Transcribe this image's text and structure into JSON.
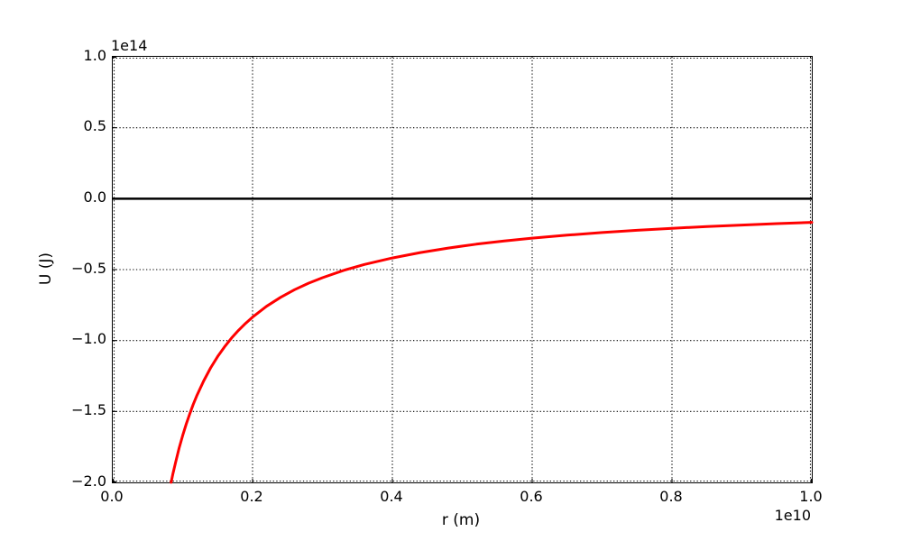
{
  "figure": {
    "background": "#ffffff",
    "axes_background": "#ffffff",
    "spine_color": "#000000",
    "text_color": "#000000"
  },
  "chart_data": {
    "type": "line",
    "title": "",
    "xlabel": "r (m)",
    "ylabel": "U (J)",
    "x_offset_text": "1e10",
    "y_offset_text": "1e14",
    "xlim": [
      0.0,
      1.0
    ],
    "ylim": [
      -2.0,
      1.0
    ],
    "xticks": {
      "values": [
        0.0,
        0.2,
        0.4,
        0.6,
        0.8,
        1.0
      ],
      "labels": [
        "0.0",
        "0.2",
        "0.4",
        "0.6",
        "0.8",
        "1.0"
      ]
    },
    "yticks": {
      "values": [
        1.0,
        0.5,
        0.0,
        -0.5,
        -1.0,
        -1.5,
        -2.0
      ],
      "labels": [
        "1.0",
        "0.5",
        "0.0",
        "−0.5",
        "−1.0",
        "−1.5",
        "−2.0"
      ]
    },
    "grid": {
      "on": true,
      "style": "dotted",
      "color": "#000000",
      "linewidth": 1.1
    },
    "zero_line": {
      "y": 0.0,
      "color": "#000000",
      "linewidth": 2.5
    },
    "legend": null,
    "series": [
      {
        "name": "gravitational-potential-energy",
        "color": "#ff0000",
        "linewidth": 3,
        "x": [
          0.0835,
          0.086,
          0.09,
          0.095,
          0.1,
          0.105,
          0.11,
          0.115,
          0.12,
          0.13,
          0.14,
          0.15,
          0.16,
          0.17,
          0.18,
          0.19,
          0.2,
          0.22,
          0.24,
          0.26,
          0.28,
          0.3,
          0.33,
          0.36,
          0.4,
          0.44,
          0.48,
          0.52,
          0.56,
          0.6,
          0.65,
          0.7,
          0.75,
          0.8,
          0.85,
          0.9,
          0.95,
          1.0
        ],
        "y": [
          -2.0,
          -1.942,
          -1.856,
          -1.758,
          -1.67,
          -1.59,
          -1.518,
          -1.452,
          -1.392,
          -1.285,
          -1.193,
          -1.113,
          -1.044,
          -0.982,
          -0.928,
          -0.879,
          -0.835,
          -0.759,
          -0.696,
          -0.642,
          -0.596,
          -0.557,
          -0.506,
          -0.464,
          -0.418,
          -0.38,
          -0.348,
          -0.321,
          -0.298,
          -0.278,
          -0.257,
          -0.239,
          -0.223,
          -0.209,
          -0.196,
          -0.186,
          -0.176,
          -0.167
        ]
      }
    ]
  }
}
